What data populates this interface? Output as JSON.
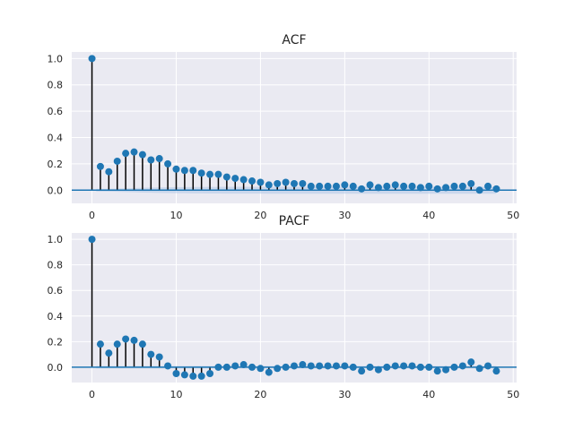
{
  "colors": {
    "background": "#ffffff",
    "plot_area": "#eaeaf2",
    "grid": "#ffffff",
    "marker": "#1f77b4",
    "stem": "#000000",
    "band": "#aec7e8",
    "text": "#262626"
  },
  "chart_data": [
    {
      "type": "scatter",
      "style": "stem",
      "title": "ACF",
      "xlabel": "",
      "ylabel": "",
      "xlim": [
        -2.4,
        50.4
      ],
      "ylim": [
        -0.1,
        1.05
      ],
      "xticks": [
        0,
        10,
        20,
        30,
        40,
        50
      ],
      "yticks": [
        0.0,
        0.2,
        0.4,
        0.6,
        0.8,
        1.0
      ],
      "tick_labels_x": [
        "0",
        "10",
        "20",
        "30",
        "40",
        "50"
      ],
      "tick_labels_y": [
        "0.0",
        "0.2",
        "0.4",
        "0.6",
        "0.8",
        "1.0"
      ],
      "grid": true,
      "zero_line": true,
      "x": [
        0,
        1,
        2,
        3,
        4,
        5,
        6,
        7,
        8,
        9,
        10,
        11,
        12,
        13,
        14,
        15,
        16,
        17,
        18,
        19,
        20,
        21,
        22,
        23,
        24,
        25,
        26,
        27,
        28,
        29,
        30,
        31,
        32,
        33,
        34,
        35,
        36,
        37,
        38,
        39,
        40,
        41,
        42,
        43,
        44,
        45,
        46,
        47,
        48
      ],
      "values": [
        1.0,
        0.18,
        0.14,
        0.22,
        0.28,
        0.29,
        0.27,
        0.23,
        0.24,
        0.2,
        0.16,
        0.15,
        0.15,
        0.13,
        0.12,
        0.12,
        0.1,
        0.09,
        0.08,
        0.07,
        0.06,
        0.04,
        0.05,
        0.06,
        0.05,
        0.05,
        0.03,
        0.03,
        0.03,
        0.03,
        0.04,
        0.03,
        0.01,
        0.04,
        0.02,
        0.03,
        0.04,
        0.03,
        0.03,
        0.02,
        0.03,
        0.01,
        0.02,
        0.03,
        0.03,
        0.05,
        0.0,
        0.03,
        0.01
      ],
      "conf_band": [
        0.0,
        0.01,
        0.011,
        0.012,
        0.014,
        0.016,
        0.018,
        0.019,
        0.021,
        0.022,
        0.023,
        0.023,
        0.024,
        0.024,
        0.025,
        0.025,
        0.026,
        0.026,
        0.026,
        0.026,
        0.026,
        0.027,
        0.027,
        0.027,
        0.027,
        0.027,
        0.027,
        0.027,
        0.027,
        0.027,
        0.027,
        0.027,
        0.027,
        0.027,
        0.027,
        0.027,
        0.027,
        0.027,
        0.027,
        0.027,
        0.027,
        0.027,
        0.027,
        0.027,
        0.027,
        0.027,
        0.027,
        0.027,
        0.027
      ]
    },
    {
      "type": "scatter",
      "style": "stem",
      "title": "PACF",
      "xlabel": "",
      "ylabel": "",
      "xlim": [
        -2.4,
        50.4
      ],
      "ylim": [
        -0.12,
        1.05
      ],
      "xticks": [
        0,
        10,
        20,
        30,
        40,
        50
      ],
      "yticks": [
        0.0,
        0.2,
        0.4,
        0.6,
        0.8,
        1.0
      ],
      "tick_labels_x": [
        "0",
        "10",
        "20",
        "30",
        "40",
        "50"
      ],
      "tick_labels_y": [
        "0.0",
        "0.2",
        "0.4",
        "0.6",
        "0.8",
        "1.0"
      ],
      "grid": true,
      "zero_line": true,
      "x": [
        0,
        1,
        2,
        3,
        4,
        5,
        6,
        7,
        8,
        9,
        10,
        11,
        12,
        13,
        14,
        15,
        16,
        17,
        18,
        19,
        20,
        21,
        22,
        23,
        24,
        25,
        26,
        27,
        28,
        29,
        30,
        31,
        32,
        33,
        34,
        35,
        36,
        37,
        38,
        39,
        40,
        41,
        42,
        43,
        44,
        45,
        46,
        47,
        48
      ],
      "values": [
        1.0,
        0.18,
        0.11,
        0.18,
        0.22,
        0.21,
        0.18,
        0.1,
        0.08,
        0.01,
        -0.05,
        -0.06,
        -0.07,
        -0.07,
        -0.05,
        0.0,
        0.0,
        0.01,
        0.02,
        0.0,
        -0.01,
        -0.04,
        -0.01,
        0.0,
        0.01,
        0.02,
        0.01,
        0.01,
        0.01,
        0.01,
        0.01,
        0.0,
        -0.03,
        0.0,
        -0.02,
        0.0,
        0.01,
        0.01,
        0.01,
        0.0,
        0.0,
        -0.03,
        -0.02,
        0.0,
        0.01,
        0.04,
        -0.01,
        0.01,
        -0.03
      ],
      "conf_band": [
        0.0,
        0.01,
        0.01,
        0.01,
        0.01,
        0.01,
        0.01,
        0.01,
        0.01,
        0.01,
        0.01,
        0.01,
        0.01,
        0.01,
        0.01,
        0.01,
        0.01,
        0.01,
        0.01,
        0.01,
        0.01,
        0.01,
        0.01,
        0.01,
        0.01,
        0.01,
        0.01,
        0.01,
        0.01,
        0.01,
        0.01,
        0.01,
        0.01,
        0.01,
        0.01,
        0.01,
        0.01,
        0.01,
        0.01,
        0.01,
        0.01,
        0.01,
        0.01,
        0.01,
        0.01,
        0.01,
        0.01,
        0.01,
        0.01
      ]
    }
  ]
}
